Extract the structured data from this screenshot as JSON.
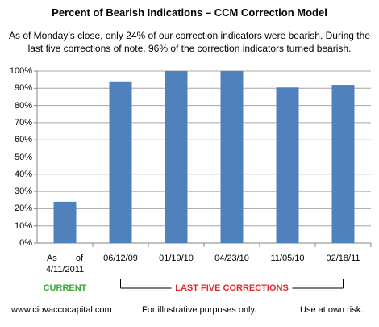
{
  "chart_data": {
    "type": "bar",
    "title": "Percent of Bearish Indications – CCM Correction Model",
    "subtitle": "As of Monday’s close, only 24% of our correction indicators were bearish. During the last five corrections of note, 96% of the correction indicators turned bearish.",
    "categories": [
      "As of 4/11/2011",
      "06/12/09",
      "01/19/10",
      "04/23/10",
      "11/05/10",
      "02/18/11"
    ],
    "values": [
      24,
      94,
      100,
      100,
      90.5,
      92
    ],
    "color": "#4f81bd",
    "ylim": [
      0,
      100
    ],
    "yticks": [
      {
        "value": 0,
        "label": "0%"
      },
      {
        "value": 10,
        "label": "10%"
      },
      {
        "value": 20,
        "label": "20%"
      },
      {
        "value": 30,
        "label": "30%"
      },
      {
        "value": 40,
        "label": "40%"
      },
      {
        "value": 50,
        "label": "50%"
      },
      {
        "value": 60,
        "label": "60%"
      },
      {
        "value": 70,
        "label": "70%"
      },
      {
        "value": 80,
        "label": "80%"
      },
      {
        "value": 90,
        "label": "90%"
      },
      {
        "value": 100,
        "label": "100%"
      }
    ],
    "grid": true,
    "annotations": {
      "current": "CURRENT",
      "current_color": "#3aaa35",
      "last_five": "LAST FIVE CORRECTIONS",
      "last_five_color": "#e8262a"
    },
    "footer": {
      "left": "www.ciovaccocapital.com",
      "center": "For illustrative purposes only.",
      "right": "Use at own risk."
    }
  }
}
